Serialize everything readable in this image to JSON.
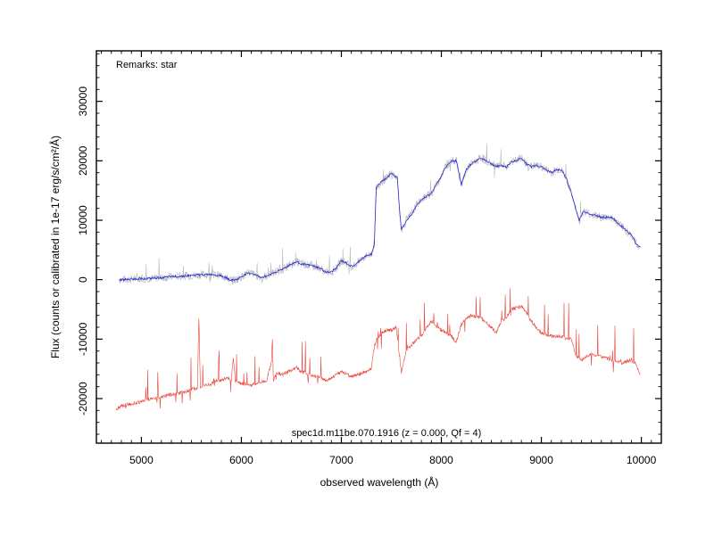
{
  "chart_data": {
    "type": "line",
    "xlabel": "observed wavelength (Å)",
    "ylabel": "Flux (counts or calibrated in 1e-17 erg/s/cm²/Å)",
    "xlim": [
      4550,
      10200
    ],
    "ylim": [
      -27500,
      38500
    ],
    "x_ticks": [
      5000,
      6000,
      7000,
      8000,
      9000,
      10000
    ],
    "y_ticks": [
      -20000,
      -10000,
      0,
      10000,
      20000,
      30000
    ],
    "x_tick_labels": [
      "5000",
      "6000",
      "7000",
      "8000",
      "9000",
      "10000"
    ],
    "y_tick_labels": [
      "-20000",
      "-10000",
      "0",
      "10000",
      "20000",
      "30000"
    ],
    "remarks": "Remarks: star",
    "caption": "spec1d.m11be.070.1916 (z = 0.000, Qf = 4)",
    "grid": false,
    "colors": {
      "smoothed": "#2b2bd6",
      "raw": "#b8b8b8",
      "lower": "#e8453c"
    },
    "series": [
      {
        "values": [
          [
            4780,
            0
          ],
          [
            4900,
            100
          ],
          [
            5000,
            200
          ],
          [
            5100,
            200
          ],
          [
            5200,
            350
          ],
          [
            5300,
            500
          ],
          [
            5400,
            600
          ],
          [
            5500,
            700
          ],
          [
            5600,
            850
          ],
          [
            5700,
            900
          ],
          [
            5800,
            700
          ],
          [
            5850,
            300
          ],
          [
            5900,
            -100
          ],
          [
            5950,
            0
          ],
          [
            6000,
            500
          ],
          [
            6050,
            1000
          ],
          [
            6100,
            1100
          ],
          [
            6150,
            700
          ],
          [
            6200,
            400
          ],
          [
            6250,
            600
          ],
          [
            6300,
            1000
          ],
          [
            6400,
            1700
          ],
          [
            6500,
            2600
          ],
          [
            6550,
            3000
          ],
          [
            6600,
            2700
          ],
          [
            6650,
            2500
          ],
          [
            6700,
            2400
          ],
          [
            6800,
            1800
          ],
          [
            6850,
            1200
          ],
          [
            6900,
            1300
          ],
          [
            6950,
            2000
          ],
          [
            7000,
            3200
          ],
          [
            7050,
            2800
          ],
          [
            7100,
            2200
          ],
          [
            7150,
            2600
          ],
          [
            7200,
            3500
          ],
          [
            7250,
            4000
          ],
          [
            7300,
            4300
          ],
          [
            7330,
            6000
          ],
          [
            7340,
            11500
          ],
          [
            7350,
            15500
          ],
          [
            7400,
            16500
          ],
          [
            7450,
            17000
          ],
          [
            7500,
            18000
          ],
          [
            7560,
            17000
          ],
          [
            7580,
            12000
          ],
          [
            7600,
            8500
          ],
          [
            7620,
            9000
          ],
          [
            7650,
            10000
          ],
          [
            7700,
            11000
          ],
          [
            7750,
            12500
          ],
          [
            7800,
            13500
          ],
          [
            7850,
            14000
          ],
          [
            7900,
            14500
          ],
          [
            7950,
            16000
          ],
          [
            8000,
            17500
          ],
          [
            8050,
            19000
          ],
          [
            8100,
            20000
          ],
          [
            8150,
            20000
          ],
          [
            8180,
            17500
          ],
          [
            8200,
            16000
          ],
          [
            8250,
            18500
          ],
          [
            8300,
            19500
          ],
          [
            8350,
            20000
          ],
          [
            8400,
            20500
          ],
          [
            8450,
            20000
          ],
          [
            8500,
            19500
          ],
          [
            8550,
            19000
          ],
          [
            8600,
            19200
          ],
          [
            8650,
            19000
          ],
          [
            8700,
            19800
          ],
          [
            8750,
            20000
          ],
          [
            8800,
            20500
          ],
          [
            8850,
            19500
          ],
          [
            8900,
            19000
          ],
          [
            8950,
            19200
          ],
          [
            9000,
            19000
          ],
          [
            9050,
            18500
          ],
          [
            9100,
            18000
          ],
          [
            9150,
            18500
          ],
          [
            9200,
            18500
          ],
          [
            9250,
            17000
          ],
          [
            9300,
            14500
          ],
          [
            9350,
            11500
          ],
          [
            9380,
            10000
          ],
          [
            9420,
            11500
          ],
          [
            9500,
            11000
          ],
          [
            9600,
            10500
          ],
          [
            9700,
            10500
          ],
          [
            9800,
            9000
          ],
          [
            9900,
            7500
          ],
          [
            9950,
            6000
          ],
          [
            9990,
            5500
          ]
        ]
      },
      {
        "values": [
          [
            4750,
            -21800
          ],
          [
            4800,
            -21200
          ],
          [
            4900,
            -20900
          ],
          [
            5000,
            -20500
          ],
          [
            5100,
            -20000
          ],
          [
            5200,
            -19700
          ],
          [
            5300,
            -19300
          ],
          [
            5400,
            -19000
          ],
          [
            5500,
            -18500
          ],
          [
            5560,
            -18200
          ],
          [
            5575,
            -6500
          ],
          [
            5590,
            -18000
          ],
          [
            5650,
            -17700
          ],
          [
            5700,
            -17500
          ],
          [
            5750,
            -17000
          ],
          [
            5800,
            -17000
          ],
          [
            5850,
            -16500
          ],
          [
            5900,
            -16800
          ],
          [
            5920,
            -13000
          ],
          [
            5940,
            -17000
          ],
          [
            6000,
            -17500
          ],
          [
            6100,
            -17700
          ],
          [
            6200,
            -17300
          ],
          [
            6250,
            -17000
          ],
          [
            6300,
            -14000
          ],
          [
            6310,
            -9800
          ],
          [
            6320,
            -17000
          ],
          [
            6350,
            -15500
          ],
          [
            6400,
            -16000
          ],
          [
            6450,
            -15700
          ],
          [
            6500,
            -15200
          ],
          [
            6550,
            -14800
          ],
          [
            6600,
            -15500
          ],
          [
            6700,
            -16000
          ],
          [
            6800,
            -16500
          ],
          [
            6850,
            -17000
          ],
          [
            6900,
            -16500
          ],
          [
            7000,
            -15500
          ],
          [
            7050,
            -15800
          ],
          [
            7100,
            -16300
          ],
          [
            7150,
            -16000
          ],
          [
            7200,
            -15800
          ],
          [
            7250,
            -15500
          ],
          [
            7300,
            -15000
          ],
          [
            7320,
            -12000
          ],
          [
            7350,
            -10000
          ],
          [
            7400,
            -9000
          ],
          [
            7450,
            -8500
          ],
          [
            7500,
            -8500
          ],
          [
            7550,
            -8000
          ],
          [
            7580,
            -13000
          ],
          [
            7600,
            -15500
          ],
          [
            7650,
            -12000
          ],
          [
            7700,
            -11000
          ],
          [
            7750,
            -10000
          ],
          [
            7800,
            -9500
          ],
          [
            7850,
            -8000
          ],
          [
            7900,
            -7000
          ],
          [
            8000,
            -8500
          ],
          [
            8100,
            -9500
          ],
          [
            8150,
            -10500
          ],
          [
            8200,
            -7500
          ],
          [
            8250,
            -6500
          ],
          [
            8300,
            -6000
          ],
          [
            8400,
            -6500
          ],
          [
            8500,
            -8000
          ],
          [
            8550,
            -9000
          ],
          [
            8600,
            -7000
          ],
          [
            8650,
            -6500
          ],
          [
            8700,
            -5000
          ],
          [
            8800,
            -4500
          ],
          [
            8850,
            -5500
          ],
          [
            8900,
            -7000
          ],
          [
            8950,
            -8000
          ],
          [
            9000,
            -9000
          ],
          [
            9100,
            -9500
          ],
          [
            9200,
            -9500
          ],
          [
            9250,
            -10000
          ],
          [
            9300,
            -10000
          ],
          [
            9350,
            -13000
          ],
          [
            9400,
            -13500
          ],
          [
            9500,
            -12500
          ],
          [
            9600,
            -13000
          ],
          [
            9700,
            -13500
          ],
          [
            9800,
            -14000
          ],
          [
            9900,
            -13500
          ],
          [
            9950,
            -14500
          ],
          [
            9990,
            -16000
          ]
        ]
      }
    ]
  }
}
